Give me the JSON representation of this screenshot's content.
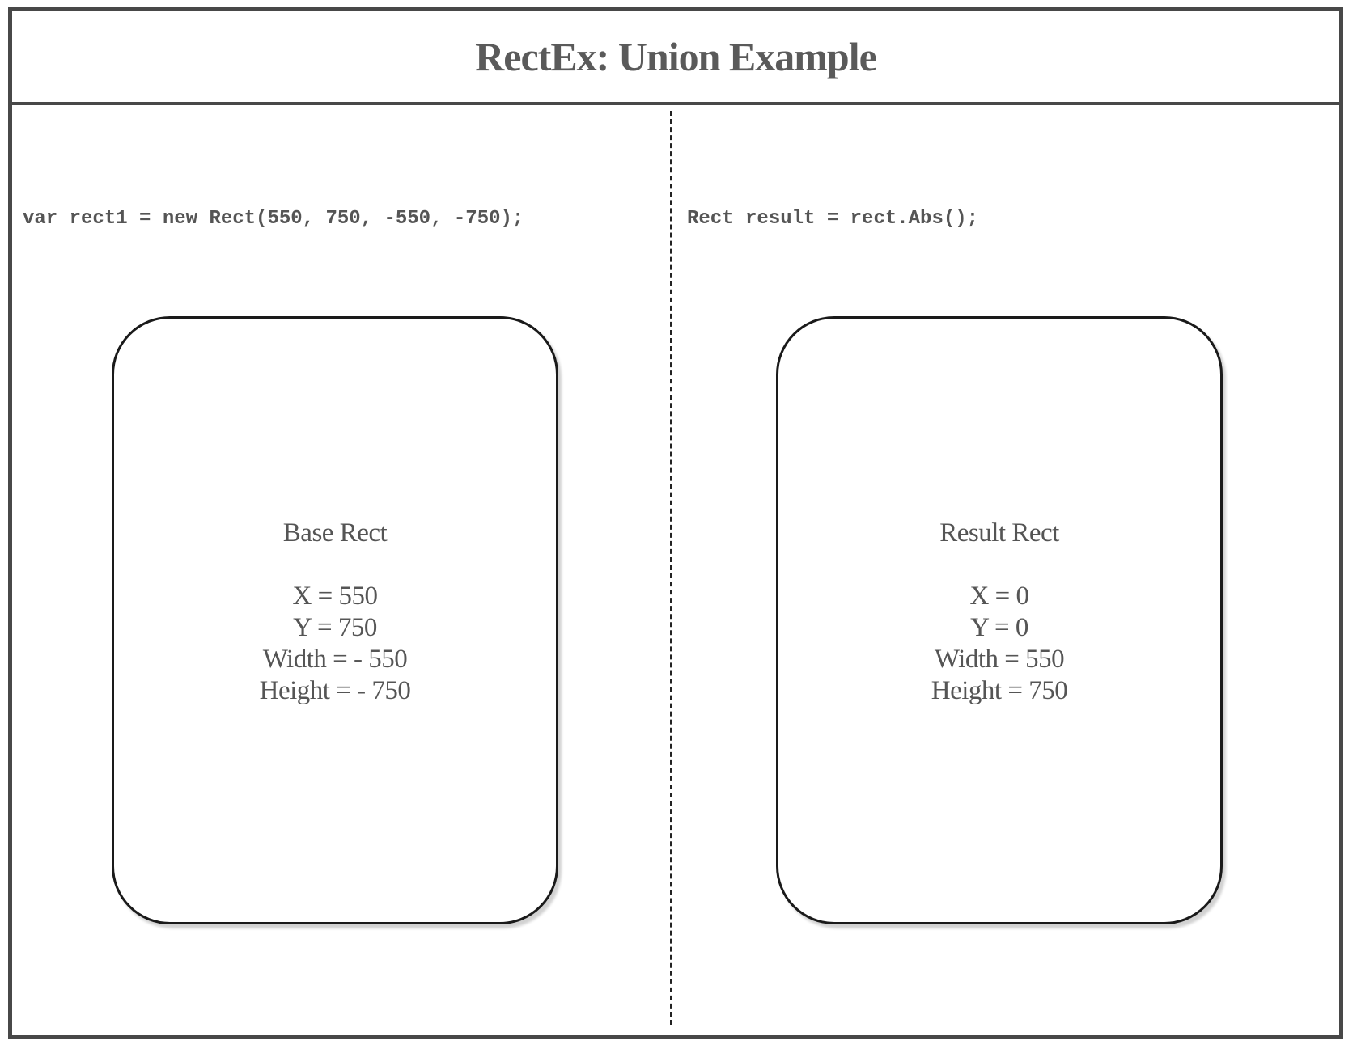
{
  "title": "RectEx: Union Example",
  "left": {
    "code": "var rect1 = new Rect(550, 750, -550, -750);",
    "card": {
      "title": "Base Rect",
      "lines": [
        "X = 550",
        "Y = 750",
        "Width = - 550",
        "Height = - 750"
      ]
    }
  },
  "right": {
    "code": "Rect result = rect.Abs();",
    "card": {
      "title": "Result Rect",
      "lines": [
        "X = 0",
        "Y = 0",
        "Width = 550",
        "Height = 750"
      ]
    }
  }
}
